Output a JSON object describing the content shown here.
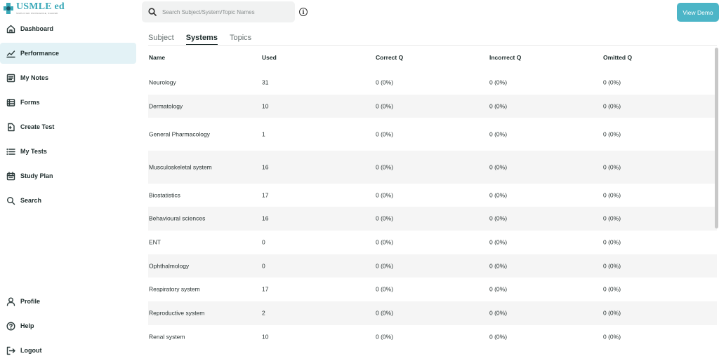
{
  "logo": {
    "title": "USMLE ed",
    "tagline": "SIMPLIFIED KNOWLEDGE, SHARED"
  },
  "sidebar": {
    "items": [
      {
        "label": "Dashboard",
        "icon": "home-icon",
        "active": false
      },
      {
        "label": "Performance",
        "icon": "chart-line-icon",
        "active": true
      },
      {
        "label": "My Notes",
        "icon": "notes-icon",
        "active": false
      },
      {
        "label": "Forms",
        "icon": "forms-icon",
        "active": false
      },
      {
        "label": "Create Test",
        "icon": "create-test-icon",
        "active": false
      },
      {
        "label": "My Tests",
        "icon": "list-icon",
        "active": false
      },
      {
        "label": "Study Plan",
        "icon": "calendar-icon",
        "active": false
      },
      {
        "label": "Search",
        "icon": "search-icon",
        "active": false
      }
    ],
    "bottom_items": [
      {
        "label": "Profile",
        "icon": "user-icon"
      },
      {
        "label": "Help",
        "icon": "help-icon"
      },
      {
        "label": "Logout",
        "icon": "logout-icon"
      }
    ]
  },
  "search": {
    "placeholder": "Search Subject/System/Topic Names"
  },
  "view_demo_label": "View Demo",
  "tabs": [
    {
      "label": "Subject",
      "active": false
    },
    {
      "label": "Systems",
      "active": true
    },
    {
      "label": "Topics",
      "active": false
    }
  ],
  "table": {
    "columns": [
      "Name",
      "Used",
      "Correct Q",
      "Incorrect Q",
      "Omitted Q"
    ],
    "rows": [
      {
        "name": "Neurology",
        "used": "31",
        "correct": "0 (0%)",
        "incorrect": "0 (0%)",
        "omitted": "0 (0%)"
      },
      {
        "name": "Dermatology",
        "used": "10",
        "correct": "0 (0%)",
        "incorrect": "0 (0%)",
        "omitted": "0 (0%)"
      },
      {
        "name": "General Pharmacology",
        "used": "1",
        "correct": "0 (0%)",
        "incorrect": "0 (0%)",
        "omitted": "0 (0%)"
      },
      {
        "name": "Musculoskeletal system",
        "used": "16",
        "correct": "0 (0%)",
        "incorrect": "0 (0%)",
        "omitted": "0 (0%)"
      },
      {
        "name": "Biostatistics",
        "used": "17",
        "correct": "0 (0%)",
        "incorrect": "0 (0%)",
        "omitted": "0 (0%)"
      },
      {
        "name": "Behavioural sciences",
        "used": "16",
        "correct": "0 (0%)",
        "incorrect": "0 (0%)",
        "omitted": "0 (0%)"
      },
      {
        "name": "ENT",
        "used": "0",
        "correct": "0 (0%)",
        "incorrect": "0 (0%)",
        "omitted": "0 (0%)"
      },
      {
        "name": "Ophthalmology",
        "used": "0",
        "correct": "0 (0%)",
        "incorrect": "0 (0%)",
        "omitted": "0 (0%)"
      },
      {
        "name": "Respiratory system",
        "used": "17",
        "correct": "0 (0%)",
        "incorrect": "0 (0%)",
        "omitted": "0 (0%)"
      },
      {
        "name": "Reproductive system",
        "used": "2",
        "correct": "0 (0%)",
        "incorrect": "0 (0%)",
        "omitted": "0 (0%)"
      },
      {
        "name": "Renal system",
        "used": "10",
        "correct": "0 (0%)",
        "incorrect": "0 (0%)",
        "omitted": "0 (0%)"
      }
    ]
  },
  "colors": {
    "accent": "#4cb5c7",
    "active_nav_bg": "#e3f2f6",
    "alt_row_bg": "#f5f5f5"
  }
}
